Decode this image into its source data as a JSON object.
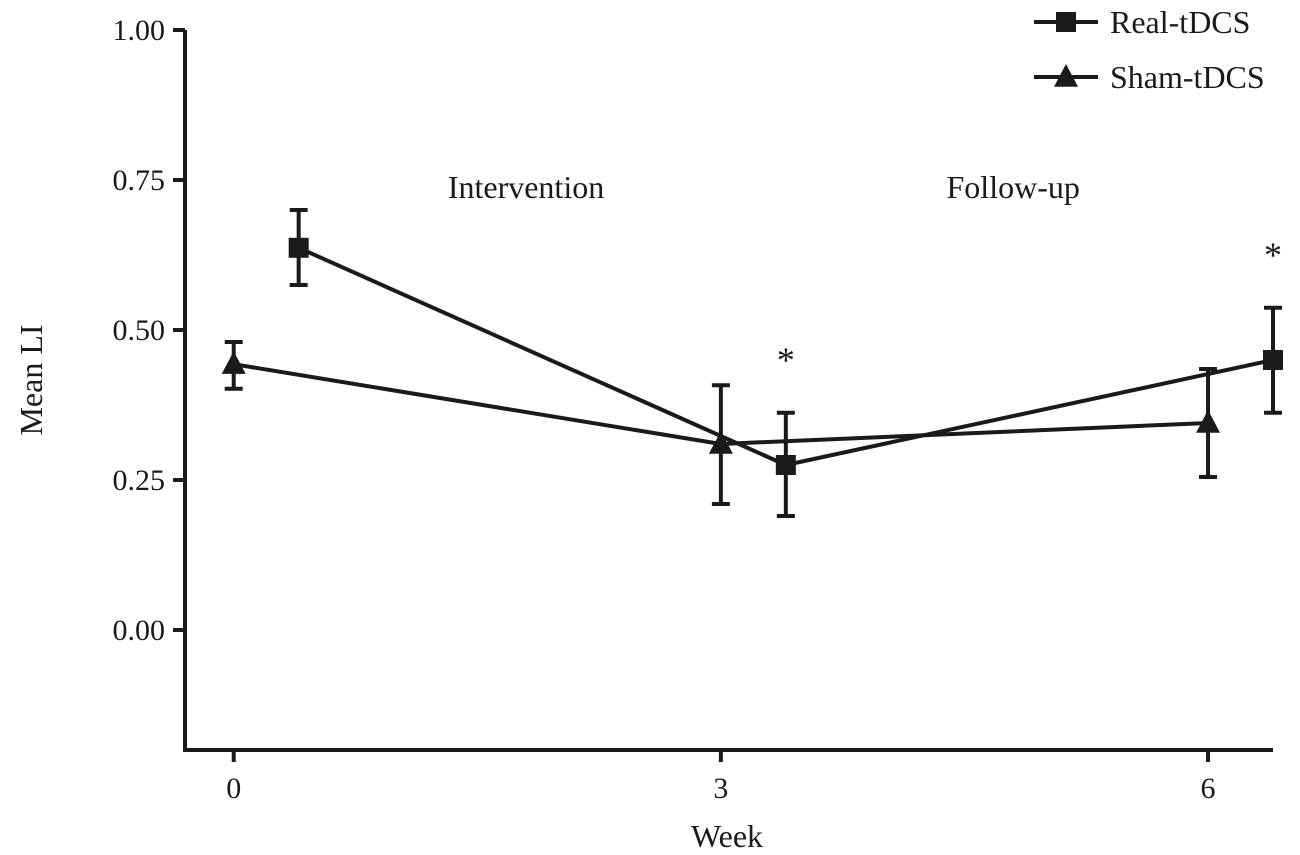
{
  "chart_data": {
    "type": "line",
    "xlabel": "Week",
    "ylabel": "Mean LI",
    "xlim": [
      -0.3,
      6.4
    ],
    "ylim": [
      -0.2,
      1.0
    ],
    "x_ticks": [
      0,
      3,
      6
    ],
    "x_tick_labels": [
      "0",
      "3",
      "6"
    ],
    "y_ticks": [
      0.0,
      0.25,
      0.5,
      0.75,
      1.0
    ],
    "y_tick_labels": [
      "0.00",
      "0.25",
      "0.50",
      "0.75",
      "1.00"
    ],
    "grid": false,
    "legend_position": "top-right",
    "series": [
      {
        "name": "Real-tDCS",
        "marker": "square",
        "color": "#1a1a1a",
        "points": [
          {
            "x": 0.4,
            "y": 0.637,
            "err_low": 0.575,
            "err_high": 0.7
          },
          {
            "x": 3.4,
            "y": 0.275,
            "err_low": 0.19,
            "err_high": 0.362
          },
          {
            "x": 6.4,
            "y": 0.45,
            "err_low": 0.362,
            "err_high": 0.537
          }
        ]
      },
      {
        "name": "Sham-tDCS",
        "marker": "triangle",
        "color": "#1a1a1a",
        "points": [
          {
            "x": 0.0,
            "y": 0.443,
            "err_low": 0.402,
            "err_high": 0.48
          },
          {
            "x": 3.0,
            "y": 0.31,
            "err_low": 0.21,
            "err_high": 0.408
          },
          {
            "x": 6.0,
            "y": 0.345,
            "err_low": 0.255,
            "err_high": 0.435
          }
        ]
      }
    ],
    "annotations": [
      {
        "text": "Intervention",
        "x": 1.8,
        "y": 0.72
      },
      {
        "text": "Follow-up",
        "x": 4.8,
        "y": 0.72
      },
      {
        "text": "*",
        "x": 3.4,
        "y": 0.43
      },
      {
        "text": "*",
        "x": 6.4,
        "y": 0.605
      }
    ]
  }
}
